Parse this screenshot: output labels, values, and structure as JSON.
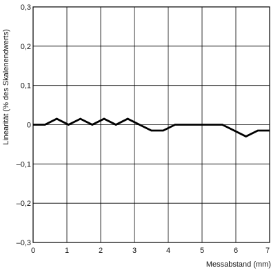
{
  "chart_data": {
    "type": "line",
    "title": "",
    "xlabel": "Messabstand (mm)",
    "ylabel": "Linearität (% des Skalenendwerts)",
    "xlim": [
      0,
      7
    ],
    "ylim": [
      -0.3,
      0.3
    ],
    "grid": true,
    "x_ticks": [
      "0",
      "1",
      "2",
      "3",
      "4",
      "5",
      "6",
      "7"
    ],
    "y_ticks": [
      "0,3",
      "0,2",
      "0,1",
      "0",
      "–0,1",
      "–0,2",
      "–0,3"
    ],
    "series": [
      {
        "x": [
          0,
          0.35,
          0.7,
          1.05,
          1.4,
          1.75,
          2.1,
          2.45,
          2.8,
          3.15,
          3.5,
          3.85,
          4.2,
          4.55,
          4.9,
          5.25,
          5.6,
          5.95,
          6.3,
          6.65,
          7
        ],
        "y": [
          0,
          0,
          0.015,
          0,
          0.015,
          0,
          0.015,
          0,
          0.015,
          0,
          -0.015,
          -0.015,
          0,
          0,
          0,
          0,
          0,
          -0.015,
          -0.03,
          -0.015,
          -0.015
        ]
      }
    ],
    "line_color": "#000000",
    "grid_color": "#000000"
  }
}
